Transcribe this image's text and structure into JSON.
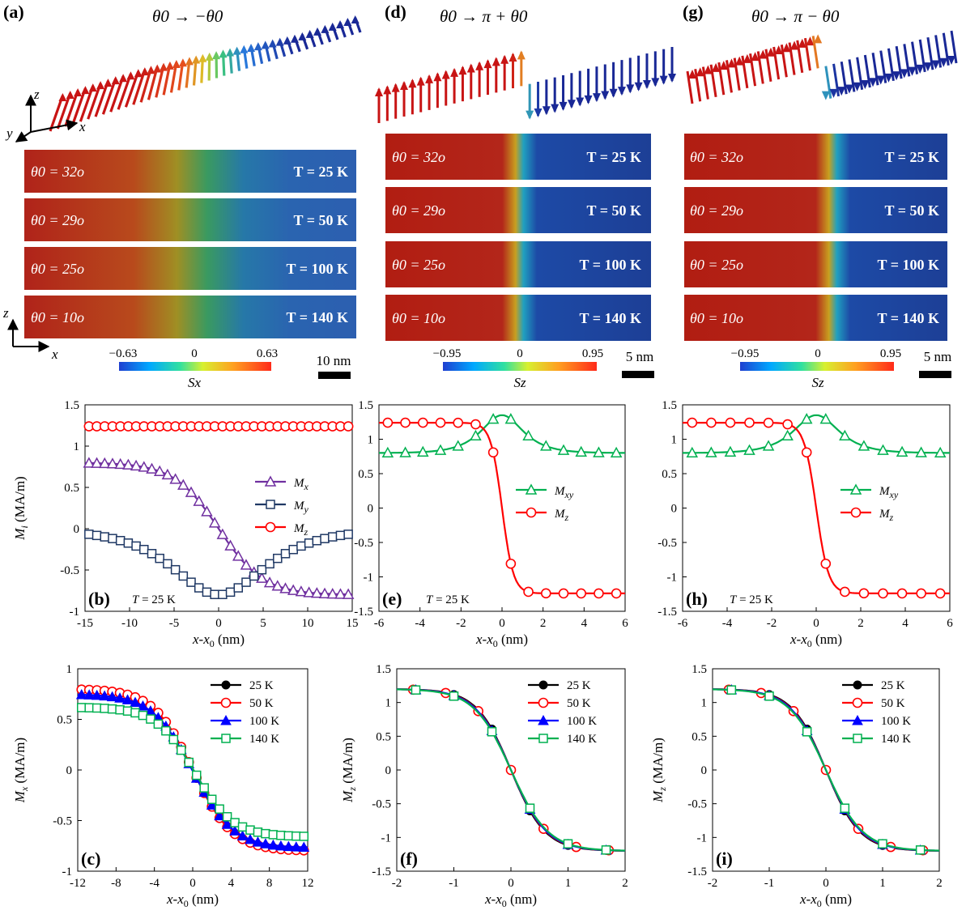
{
  "colors": {
    "red": "#ff0000",
    "navy": "#1f3864",
    "purple": "#7030a0",
    "green": "#00b050",
    "blue": "#0000ff",
    "black": "#000000",
    "strip_red": "#b11d12",
    "strip_blue": "#1d3f96"
  },
  "panels": {
    "a": {
      "label": "(a)",
      "formula": "θ0 → −θ0",
      "axes": [
        "z",
        "y",
        "x"
      ],
      "strips": [
        {
          "theta": "θ0 = 32o",
          "temp": "T = 25 K"
        },
        {
          "theta": "θ0 = 29o",
          "temp": "T = 50 K"
        },
        {
          "theta": "θ0 = 25o",
          "temp": "T = 100 K"
        },
        {
          "theta": "θ0 = 10o",
          "temp": "T = 140 K"
        }
      ],
      "strip_axes": [
        "z",
        "x"
      ],
      "colorbar": {
        "min": "−0.63",
        "mid": "0",
        "max": "0.63",
        "label": "Sx"
      },
      "scalebar": "10 nm"
    },
    "d": {
      "label": "(d)",
      "formula": "θ0 → π + θ0",
      "strips": [
        {
          "theta": "θ0 = 32o",
          "temp": "T = 25 K"
        },
        {
          "theta": "θ0 = 29o",
          "temp": "T = 50 K"
        },
        {
          "theta": "θ0 = 25o",
          "temp": "T = 100 K"
        },
        {
          "theta": "θ0 = 10o",
          "temp": "T = 140 K"
        }
      ],
      "colorbar": {
        "min": "−0.95",
        "mid": "0",
        "max": "0.95",
        "label": "Sz"
      },
      "scalebar": "5 nm"
    },
    "g": {
      "label": "(g)",
      "formula": "θ0 → π − θ0",
      "strips": [
        {
          "theta": "θ0 = 32o",
          "temp": "T = 25 K"
        },
        {
          "theta": "θ0 = 29o",
          "temp": "T = 50 K"
        },
        {
          "theta": "θ0 = 25o",
          "temp": "T = 100 K"
        },
        {
          "theta": "θ0 = 10o",
          "temp": "T = 140 K"
        }
      ],
      "colorbar": {
        "min": "−0.95",
        "mid": "0",
        "max": "0.95",
        "label": "Sz"
      },
      "scalebar": "5 nm"
    }
  },
  "chart_data": [
    {
      "id": "b",
      "type": "line",
      "label": "(b)",
      "annotation": "T = 25 K",
      "xlabel": "x-x0 (nm)",
      "ylabel": "Mi (MA/m)",
      "xlim": [
        -15,
        15
      ],
      "ylim": [
        -1,
        1.5
      ],
      "xticks": [
        -15,
        -10,
        -5,
        0,
        5,
        10,
        15
      ],
      "xtick_labels": [
        "-15",
        "-10",
        "-5",
        "0",
        "5",
        "10",
        "15"
      ],
      "yticks": [
        -1,
        -0.5,
        0,
        0.5,
        1,
        1.5
      ],
      "ytick_labels": [
        "-1",
        "-0.5",
        "0",
        "0.5",
        "1",
        "1.5"
      ],
      "legend_position": "right",
      "series": [
        {
          "name": "Mx",
          "color": "#7030a0",
          "marker": "triangle",
          "kind": "tanh",
          "a": 0.8,
          "w": 5.0,
          "b": 0,
          "x0": 0,
          "n": 34
        },
        {
          "name": "My",
          "color": "#1f3864",
          "marker": "square",
          "kind": "sech",
          "a": -0.8,
          "w": 4.6,
          "b": 0,
          "x0": 0,
          "n": 34
        },
        {
          "name": "Mz",
          "color": "#ff0000",
          "marker": "circle",
          "kind": "const",
          "a": 1.24,
          "n": 34
        }
      ]
    },
    {
      "id": "e",
      "type": "line",
      "label": "(e)",
      "annotation": "T = 25 K",
      "xlabel": "x-x0 (nm)",
      "ylabel": "",
      "xlim": [
        -6,
        6
      ],
      "ylim": [
        -1.5,
        1.5
      ],
      "xticks": [
        -6,
        -4,
        -2,
        0,
        2,
        4,
        6
      ],
      "xtick_labels": [
        "-6",
        "-4",
        "-2",
        "0",
        "2",
        "4",
        "6"
      ],
      "yticks": [
        -1.5,
        -1,
        -0.5,
        0,
        0.5,
        1,
        1.5
      ],
      "ytick_labels": [
        "-1.5",
        "-1",
        "-0.5",
        "0",
        "0.5",
        "1",
        "1.5"
      ],
      "legend_position": "center-right",
      "series": [
        {
          "name": "Mxy",
          "color": "#00b050",
          "marker": "triangle",
          "kind": "sech",
          "a": 0.55,
          "w": 0.9,
          "b": 0.8,
          "x0": 0,
          "n": 14
        },
        {
          "name": "Mz",
          "color": "#ff0000",
          "marker": "circle",
          "kind": "tanh",
          "a": 1.24,
          "w": 0.55,
          "b": 0,
          "x0": 0,
          "n": 14
        }
      ]
    },
    {
      "id": "h",
      "type": "line",
      "label": "(h)",
      "annotation": "T = 25 K",
      "xlabel": "x-x0 (nm)",
      "ylabel": "",
      "xlim": [
        -6,
        6
      ],
      "ylim": [
        -1.5,
        1.5
      ],
      "xticks": [
        -6,
        -4,
        -2,
        0,
        2,
        4,
        6
      ],
      "xtick_labels": [
        "-6",
        "-4",
        "-2",
        "0",
        "2",
        "4",
        "6"
      ],
      "yticks": [
        -1.5,
        -1,
        -0.5,
        0,
        0.5,
        1,
        1.5
      ],
      "ytick_labels": [
        "-1.5",
        "-1",
        "-0.5",
        "0",
        "0.5",
        "1",
        "1.5"
      ],
      "legend_position": "center-right",
      "series": [
        {
          "name": "Mxy",
          "color": "#00b050",
          "marker": "triangle",
          "kind": "sech",
          "a": 0.55,
          "w": 0.9,
          "b": 0.8,
          "x0": 0,
          "n": 14
        },
        {
          "name": "Mz",
          "color": "#ff0000",
          "marker": "circle",
          "kind": "tanh",
          "a": 1.24,
          "w": 0.55,
          "b": 0,
          "x0": 0,
          "n": 14
        }
      ]
    },
    {
      "id": "c",
      "type": "line",
      "label": "(c)",
      "xlabel": "x-x0 (nm)",
      "ylabel": "Mx (MA/m)",
      "xlim": [
        -12,
        12
      ],
      "ylim": [
        -1,
        1
      ],
      "xticks": [
        -12,
        -8,
        -4,
        0,
        4,
        8,
        12
      ],
      "xtick_labels": [
        "-12",
        "-8",
        "-4",
        "0",
        "4",
        "8",
        "12"
      ],
      "yticks": [
        -1,
        -0.5,
        0,
        0.5,
        1
      ],
      "ytick_labels": [
        "-1",
        "-0.5",
        "0",
        "0.5",
        "1"
      ],
      "legend_position": "top-right",
      "series": [
        {
          "name": "25 K",
          "color": "#000000",
          "marker": "dot",
          "kind": "tanh",
          "a": 0.8,
          "w": 4.2,
          "b": 0,
          "x0": 0,
          "n": 30
        },
        {
          "name": "50 K",
          "color": "#ff0000",
          "marker": "circle",
          "kind": "tanh",
          "a": 0.8,
          "w": 4.1,
          "b": 0,
          "x0": 0,
          "n": 30
        },
        {
          "name": "100 K",
          "color": "#0000ff",
          "marker": "filled-triangle",
          "kind": "tanh",
          "a": 0.76,
          "w": 4.2,
          "b": -0.01,
          "x0": 0,
          "n": 30
        },
        {
          "name": "140 K",
          "color": "#00b050",
          "marker": "square",
          "kind": "tanh",
          "a": 0.64,
          "w": 4.0,
          "b": -0.02,
          "x0": 0.2,
          "n": 30
        }
      ]
    },
    {
      "id": "f",
      "type": "line",
      "label": "(f)",
      "xlabel": "x-x0 (nm)",
      "ylabel": "Mz (MA/m)",
      "xlim": [
        -2,
        2
      ],
      "ylim": [
        -1.5,
        1.5
      ],
      "xticks": [
        -2,
        -1,
        0,
        1,
        2
      ],
      "xtick_labels": [
        "-2",
        "-1",
        "0",
        "1",
        "2"
      ],
      "yticks": [
        -1.5,
        -1,
        -0.5,
        0,
        0.5,
        1,
        1.5
      ],
      "ytick_labels": [
        "-1.5",
        "-1",
        "-0.5",
        "0",
        "0.5",
        "1",
        "1.5"
      ],
      "legend_position": "top-right",
      "series": [
        {
          "name": "25 K",
          "color": "#000000",
          "marker": "dot",
          "kind": "tanh",
          "a": 1.2,
          "w": 0.6,
          "b": 0,
          "x0": 0,
          "n": 6
        },
        {
          "name": "50 K",
          "color": "#ff0000",
          "marker": "circle",
          "kind": "tanh",
          "a": 1.2,
          "w": 0.62,
          "b": 0,
          "x0": 0,
          "n": 7
        },
        {
          "name": "100 K",
          "color": "#0000ff",
          "marker": "filled-triangle",
          "kind": "tanh",
          "a": 1.2,
          "w": 0.63,
          "b": 0,
          "x0": 0,
          "n": 6
        },
        {
          "name": "140 K",
          "color": "#00b050",
          "marker": "square",
          "kind": "tanh",
          "a": 1.2,
          "w": 0.65,
          "b": 0,
          "x0": 0,
          "n": 6
        }
      ]
    },
    {
      "id": "i",
      "type": "line",
      "label": "(i)",
      "xlabel": "x-x0 (nm)",
      "ylabel": "Mz (MA/m)",
      "xlim": [
        -2,
        2
      ],
      "ylim": [
        -1.5,
        1.5
      ],
      "xticks": [
        -2,
        -1,
        0,
        1,
        2
      ],
      "xtick_labels": [
        "-2",
        "-1",
        "0",
        "1",
        "2"
      ],
      "yticks": [
        -1.5,
        -1,
        -0.5,
        0,
        0.5,
        1,
        1.5
      ],
      "ytick_labels": [
        "-1.5",
        "-1",
        "-0.5",
        "0",
        "0.5",
        "1",
        "1.5"
      ],
      "legend_position": "top-right",
      "series": [
        {
          "name": "25 K",
          "color": "#000000",
          "marker": "dot",
          "kind": "tanh",
          "a": 1.2,
          "w": 0.6,
          "b": 0,
          "x0": 0,
          "n": 6
        },
        {
          "name": "50 K",
          "color": "#ff0000",
          "marker": "circle",
          "kind": "tanh",
          "a": 1.2,
          "w": 0.62,
          "b": 0,
          "x0": 0,
          "n": 7
        },
        {
          "name": "100 K",
          "color": "#0000ff",
          "marker": "filled-triangle",
          "kind": "tanh",
          "a": 1.2,
          "w": 0.63,
          "b": 0,
          "x0": 0,
          "n": 6
        },
        {
          "name": "140 K",
          "color": "#00b050",
          "marker": "square",
          "kind": "tanh",
          "a": 1.2,
          "w": 0.65,
          "b": 0,
          "x0": 0,
          "n": 6
        }
      ]
    }
  ]
}
